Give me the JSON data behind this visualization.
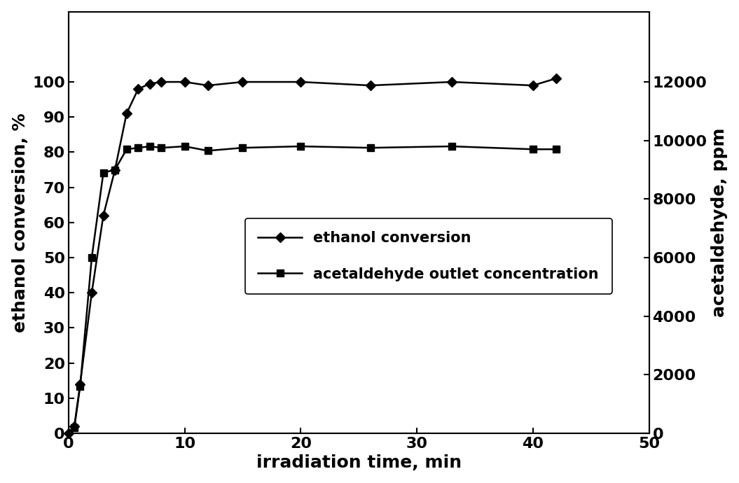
{
  "ethanol_conversion_x": [
    0,
    0.5,
    1,
    2,
    3,
    4,
    5,
    6,
    7,
    8,
    10,
    12,
    15,
    20,
    26,
    33,
    40,
    42
  ],
  "ethanol_conversion_y": [
    0,
    2,
    14,
    40,
    62,
    75,
    91,
    98,
    99.5,
    100,
    100,
    99,
    100,
    100,
    99,
    100,
    99,
    101
  ],
  "acetaldehyde_x": [
    0,
    0.5,
    1,
    2,
    3,
    4,
    5,
    6,
    7,
    8,
    10,
    12,
    15,
    20,
    26,
    33,
    40,
    42
  ],
  "acetaldehyde_y": [
    0,
    200,
    1600,
    6000,
    8900,
    9000,
    9700,
    9750,
    9800,
    9750,
    9800,
    9650,
    9750,
    9800,
    9750,
    9800,
    9700,
    9700
  ],
  "left_ylabel": "ethanol conversion, %",
  "right_ylabel": "acetaldehyde, ppm",
  "xlabel": "irradiation time, min",
  "legend_ethanol": "ethanol conversion",
  "legend_acetaldehyde": "acetaldehyde outlet concentration",
  "xlim": [
    0,
    50
  ],
  "left_ylim": [
    0,
    120
  ],
  "right_ylim": [
    0,
    14400
  ],
  "left_yticks": [
    0,
    10,
    20,
    30,
    40,
    50,
    60,
    70,
    80,
    90,
    100
  ],
  "right_yticks": [
    0,
    2000,
    4000,
    6000,
    8000,
    10000,
    12000
  ],
  "xticks": [
    0,
    10,
    20,
    30,
    40,
    50
  ],
  "line_color": "#000000",
  "background_color": "#ffffff",
  "marker_diamond": "D",
  "marker_square": "s",
  "markersize": 7,
  "linewidth": 1.8,
  "fontsize_labels": 18,
  "fontsize_ticks": 16,
  "fontsize_legend": 15
}
